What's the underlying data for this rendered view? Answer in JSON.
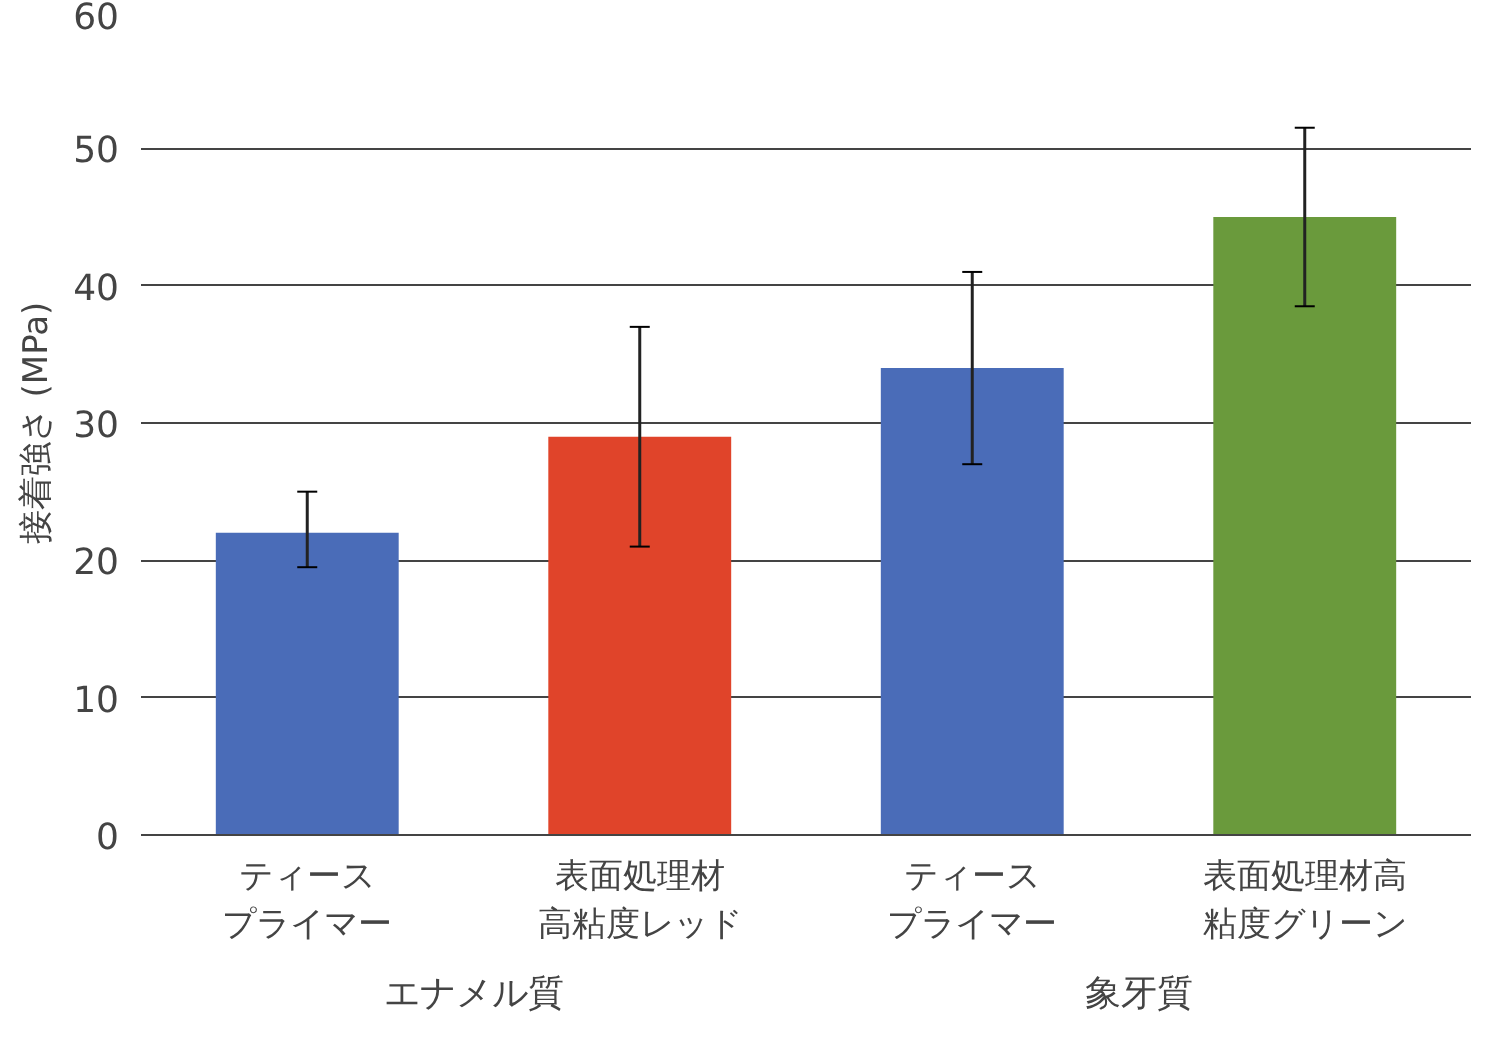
{
  "chart_data": {
    "type": "bar",
    "ylabel": "接着強さ (MPa)",
    "categories": [
      "ティースプライマー",
      "表面処理材高粘度レッド",
      "ティースプライマー",
      "表面処理材高粘度グリーン"
    ],
    "values": [
      22,
      29,
      34,
      45
    ],
    "colors": [
      "#4a6cb8",
      "#e0442a",
      "#4a6cb8",
      "#6a9a3c"
    ],
    "errors": [
      [
        19.5,
        25
      ],
      [
        21,
        37
      ],
      [
        27,
        41
      ],
      [
        38.5,
        51.5
      ]
    ],
    "annotations": [
      "エナメル質",
      "象牙質"
    ],
    "ylim": [
      0,
      60
    ],
    "yticks": [
      0,
      10,
      20,
      30,
      40,
      50,
      60
    ],
    "grid": "y"
  }
}
